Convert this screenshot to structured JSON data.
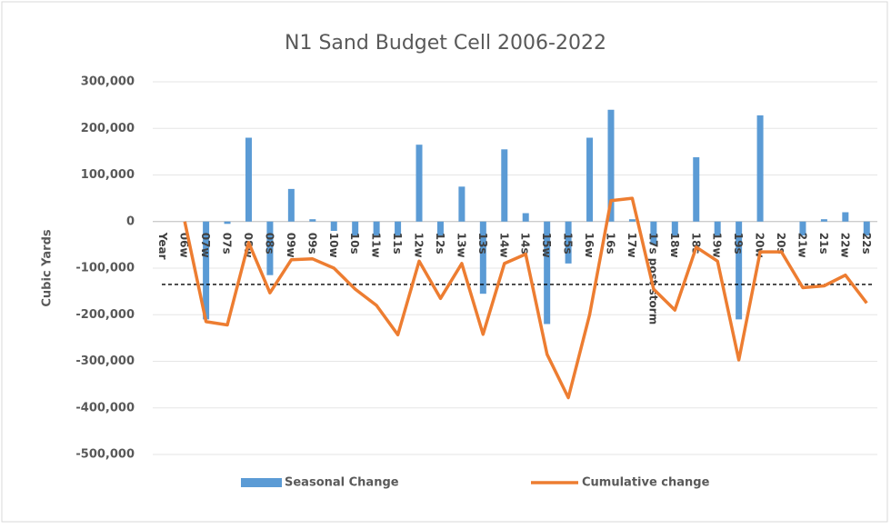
{
  "chart_data": {
    "type": "bar_line",
    "title": "N1 Sand Budget Cell 2006-2022",
    "y_label": "Cubic Yards",
    "categories": [
      "Year",
      "06w",
      "07w",
      "07s",
      "08w",
      "08s",
      "09w",
      "09s",
      "10w",
      "10s",
      "11w",
      "11s",
      "12w",
      "12s",
      "13w",
      "13s",
      "14w",
      "14s",
      "15w",
      "15s",
      "16w",
      "16s",
      "17w",
      "17s post storm",
      "18w",
      "18s",
      "19w",
      "19s",
      "20w",
      "20s",
      "21w",
      "21s",
      "22w",
      "22s"
    ],
    "series": [
      {
        "name": "Seasonal Change",
        "kind": "bar",
        "color": "#5b9bd5",
        "values": [
          null,
          0,
          -210000,
          -5000,
          180000,
          -115000,
          70000,
          5000,
          -20000,
          -30000,
          -30000,
          -30000,
          165000,
          -30000,
          75000,
          -155000,
          155000,
          18000,
          -220000,
          -90000,
          180000,
          240000,
          5000,
          -50000,
          -30000,
          138000,
          -30000,
          -210000,
          228000,
          0,
          -30000,
          5000,
          20000,
          -30000
        ]
      },
      {
        "name": "Cumulative change",
        "kind": "line",
        "color": "#ed7d31",
        "values": [
          null,
          0,
          -215000,
          -222000,
          -45000,
          -153000,
          -82000,
          -80000,
          -100000,
          -145000,
          -180000,
          -243000,
          -85000,
          -165000,
          -90000,
          -242000,
          -90000,
          -70000,
          -285000,
          -378000,
          -200000,
          45000,
          50000,
          -145000,
          -190000,
          -55000,
          -85000,
          -297000,
          -65000,
          -65000,
          -142000,
          -138000,
          -115000,
          -175000
        ]
      }
    ],
    "reference_line": -135000,
    "ylim": [
      -500000,
      300000
    ],
    "yticks": [
      {
        "value": -500000,
        "label": "-500,000"
      },
      {
        "value": -400000,
        "label": "-400,000"
      },
      {
        "value": -300000,
        "label": "-300,000"
      },
      {
        "value": -200000,
        "label": "-200,000"
      },
      {
        "value": -100000,
        "label": "-100,000"
      },
      0,
      {
        "value": 100000,
        "label": "100,000"
      },
      {
        "value": 200000,
        "label": "200,000"
      },
      {
        "value": 300000,
        "label": "300,000"
      }
    ],
    "grid": true
  }
}
